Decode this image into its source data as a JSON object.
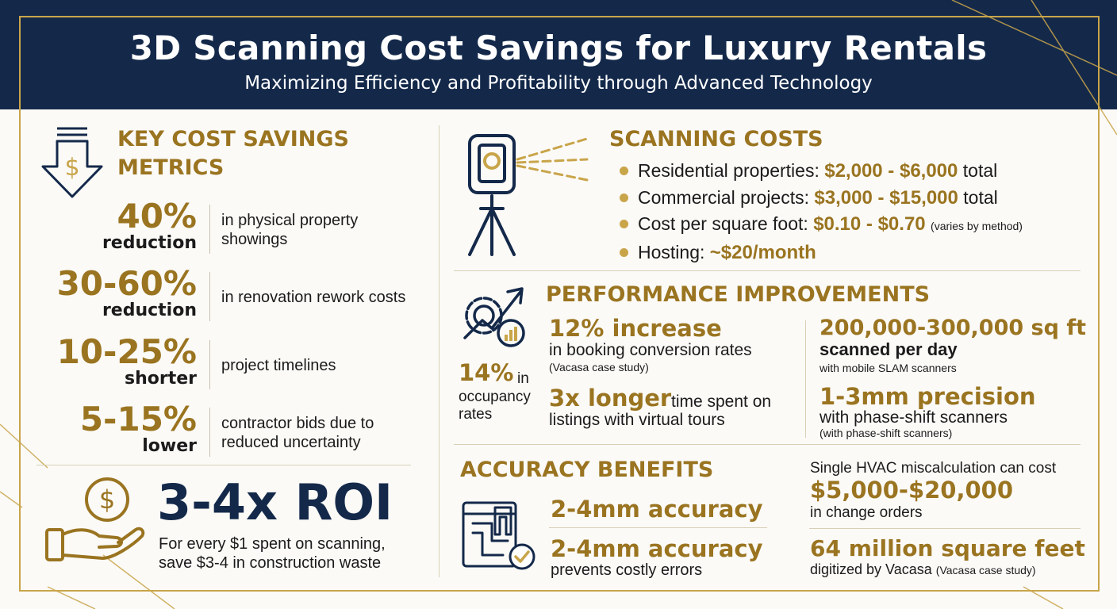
{
  "header": {
    "title": "3D Scanning Cost Savings for Luxury Rentals",
    "subtitle": "Maximizing Efficiency and Profitability through Advanced Technology"
  },
  "key_metrics": {
    "heading_line1": "KEY COST SAVINGS",
    "heading_line2": "METRICS",
    "items": [
      {
        "value": "40%",
        "sub": "reduction",
        "desc": "in physical property showings"
      },
      {
        "value": "30-60%",
        "sub": "reduction",
        "desc": "in renovation rework costs"
      },
      {
        "value": "10-25%",
        "sub": "shorter",
        "desc": "project timelines"
      },
      {
        "value": "5-15%",
        "sub": "lower",
        "desc": "contractor bids due to reduced uncertainty"
      }
    ]
  },
  "roi": {
    "value": "3-4x ROI",
    "desc": "For every $1 spent on scanning, save $3-4 in construction waste"
  },
  "scanning_costs": {
    "heading": "SCANNING COSTS",
    "items": [
      {
        "label": "Residential properties: ",
        "amount": "$2,000 - $6,000",
        "suffix": " total",
        "note": ""
      },
      {
        "label": "Commercial projects: ",
        "amount": "$3,000 - $15,000",
        "suffix": " total",
        "note": ""
      },
      {
        "label": "Cost per square foot: ",
        "amount": "$0.10 - $0.70",
        "suffix": "",
        "note": "(varies by method)"
      },
      {
        "label": "Hosting: ",
        "amount": "~$20/month",
        "suffix": "",
        "note": ""
      }
    ]
  },
  "performance": {
    "heading": "PERFORMANCE IMPROVEMENTS",
    "occupancy_value": "14%",
    "occupancy_in": "in",
    "occupancy_text1": "occupancy",
    "occupancy_text2": "rates",
    "booking_value": "12% increase",
    "booking_text": "in booking conversion rates",
    "booking_note": "(Vacasa case study)",
    "time_value": "3x longer",
    "time_text1": "time spent on",
    "time_text2": "listings with virtual tours",
    "sqft_value": "200,000-300,000 sq ft",
    "sqft_sub": "scanned per day",
    "sqft_note": "with mobile SLAM scanners",
    "precision_value": "1-3mm precision",
    "precision_text": "with phase-shift scanners",
    "precision_note": "(with phase-shift scanners)"
  },
  "accuracy": {
    "heading": "ACCURACY BENEFITS",
    "item1_value": "2-4mm accuracy",
    "item2_value": "2-4mm accuracy",
    "item2_text": "prevents costly errors",
    "hvac_text": "Single HVAC miscalculation can cost",
    "hvac_value": "$5,000-$20,000",
    "hvac_sub": "in change orders",
    "vacasa_value": "64 million square feet",
    "vacasa_text": "digitized by Vacasa",
    "vacasa_note": "(Vacasa case study)"
  },
  "colors": {
    "navy": "#14294a",
    "gold": "#9a7420",
    "gold_light": "#c9a54a",
    "background": "#fbfaf7"
  },
  "icons": [
    "down-arrow-dollar-icon",
    "dollar-hand-icon",
    "laser-scanner-tripod-icon",
    "gear-growth-chart-icon",
    "blueprint-caliper-icon"
  ]
}
